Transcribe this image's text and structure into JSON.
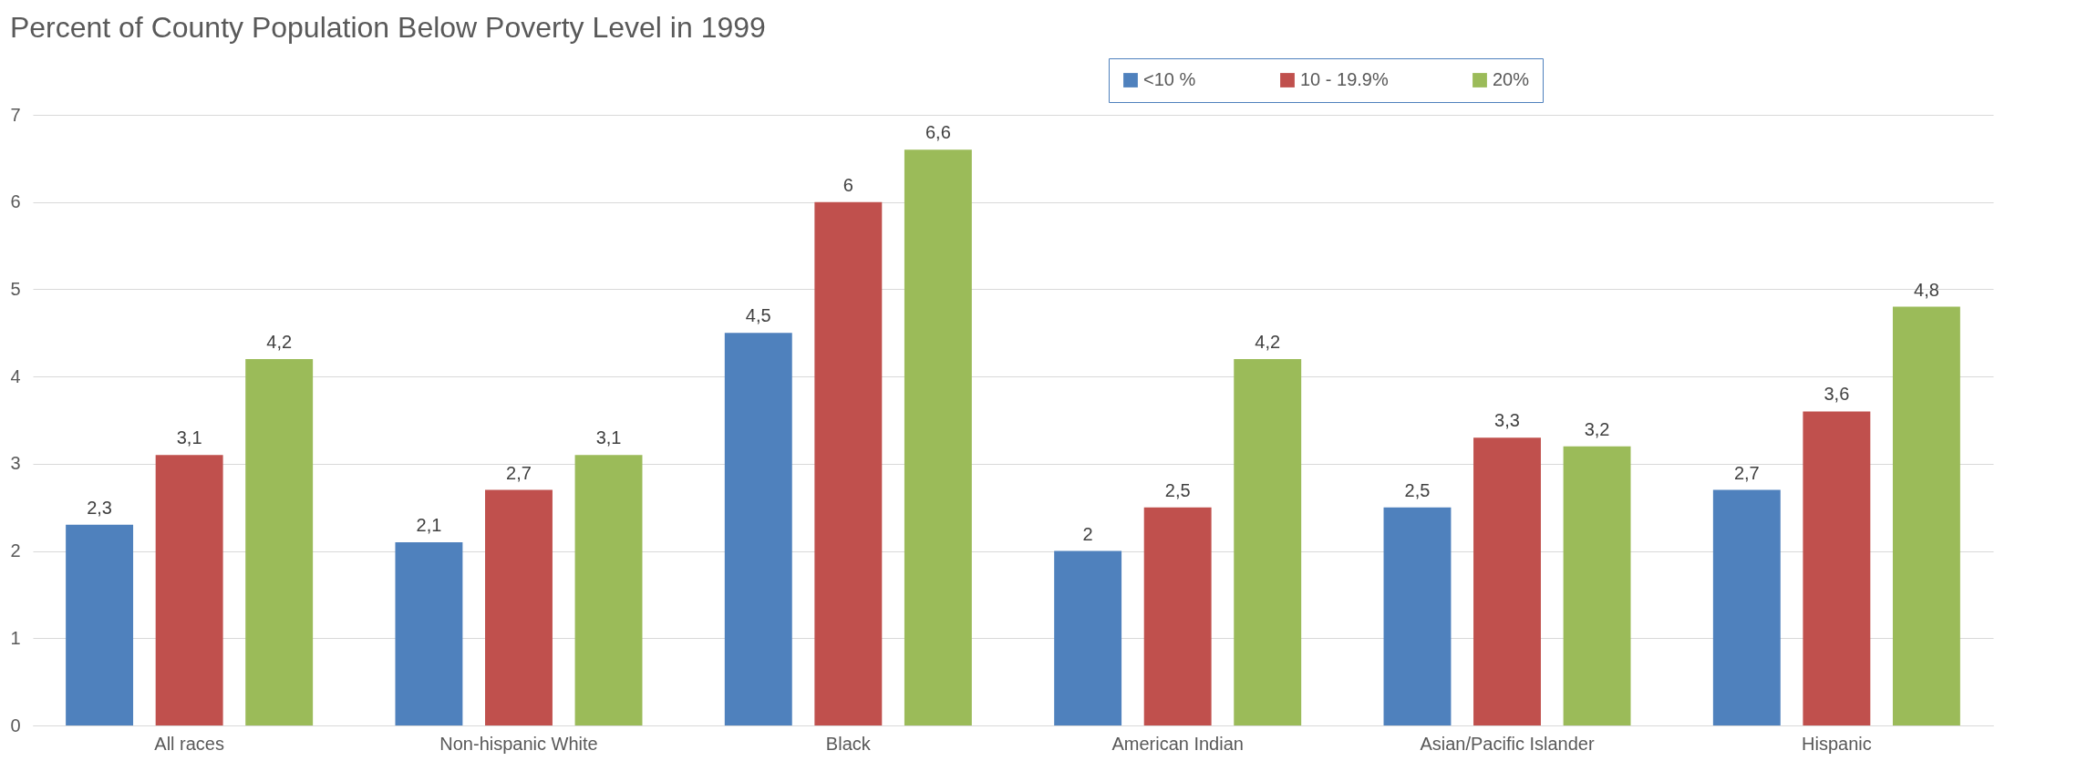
{
  "chart_data": {
    "type": "bar",
    "title": "Percent of County Population Below Poverty Level in 1999",
    "categories": [
      "All races",
      "Non-hispanic White",
      "Black",
      "American Indian",
      "Asian/Pacific Islander",
      "Hispanic"
    ],
    "series": [
      {
        "name": "<10 %",
        "color": "#4f81bd",
        "values": [
          2.3,
          2.1,
          4.5,
          2,
          2.5,
          2.7
        ],
        "value_labels": [
          "2,3",
          "2,1",
          "4,5",
          "2",
          "2,5",
          "2,7"
        ]
      },
      {
        "name": "10 - 19.9%",
        "color": "#c0504d",
        "values": [
          3.1,
          2.7,
          6,
          2.5,
          3.3,
          3.6
        ],
        "value_labels": [
          "3,1",
          "2,7",
          "6",
          "2,5",
          "3,3",
          "3,6"
        ]
      },
      {
        "name": "20%",
        "color": "#9bbb59",
        "values": [
          4.2,
          3.1,
          6.6,
          4.2,
          3.2,
          4.8
        ],
        "value_labels": [
          "4,2",
          "3,1",
          "6,6",
          "4,2",
          "3,2",
          "4,8"
        ]
      }
    ],
    "ylim": [
      0,
      7
    ],
    "yticks": [
      0,
      1,
      2,
      3,
      4,
      5,
      6,
      7
    ],
    "grid": "y",
    "legend": "top"
  }
}
